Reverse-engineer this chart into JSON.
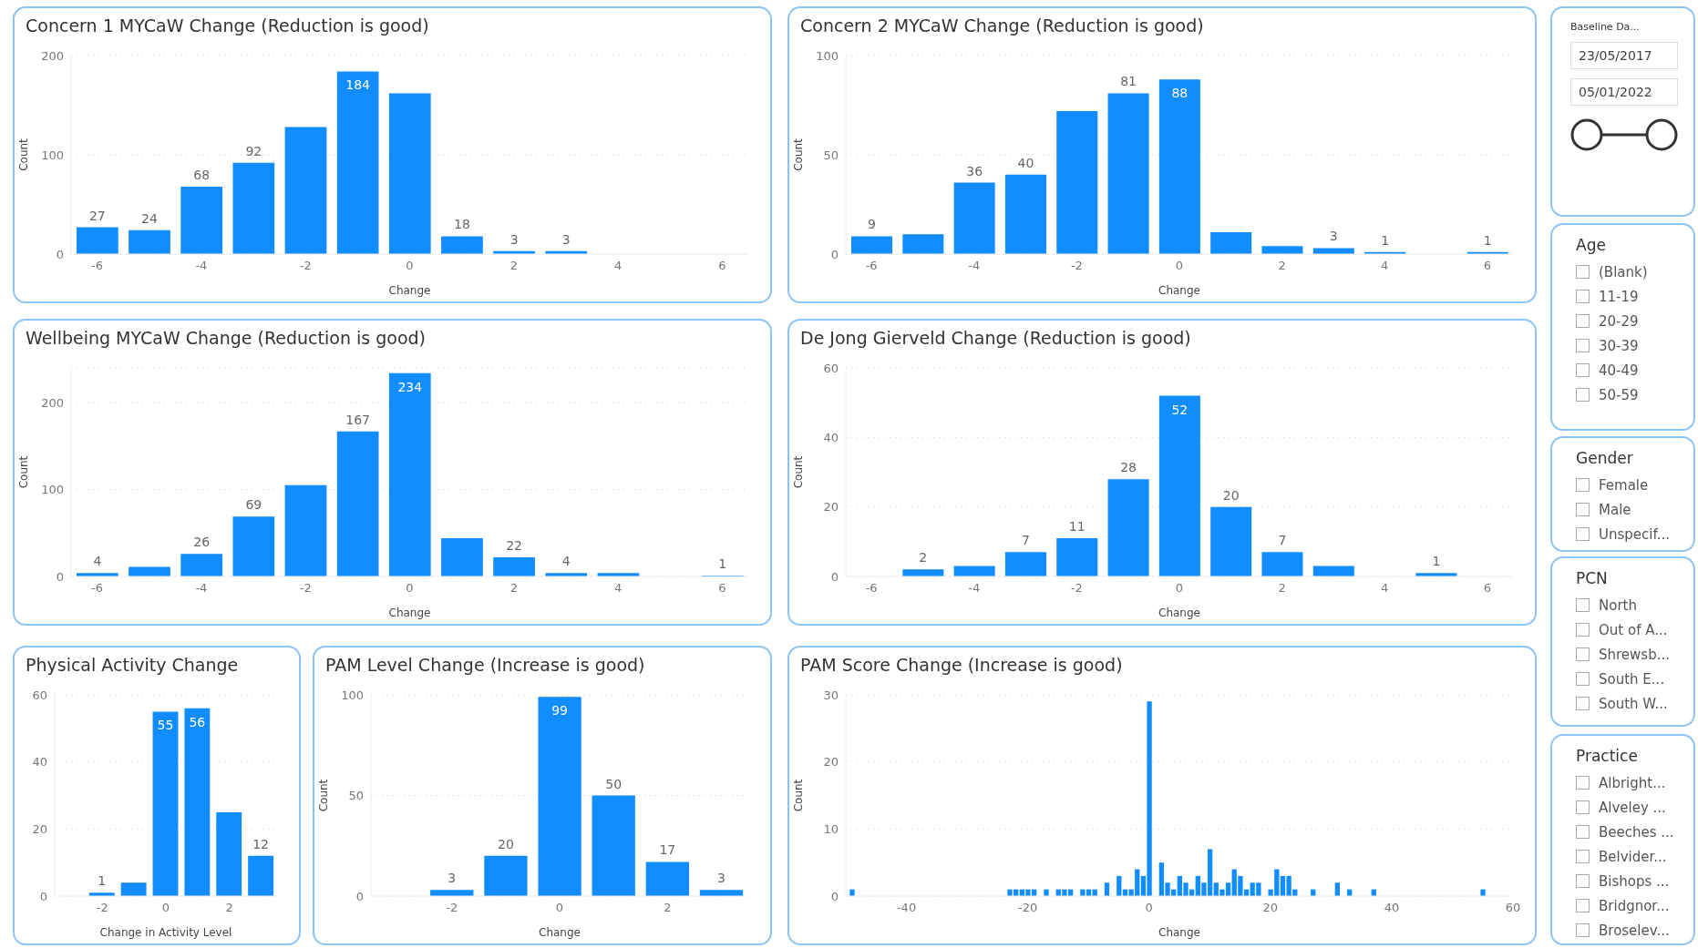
{
  "chart_data": [
    {
      "type": "bar",
      "title": "Concern 1 MYCaW Change (Reduction is good)",
      "xlabel": "Change",
      "ylabel": "Count",
      "x": [
        -6,
        -5,
        -4,
        -3,
        -2,
        -1,
        0,
        1,
        2,
        3
      ],
      "values": [
        27,
        24,
        68,
        92,
        128,
        184,
        162,
        18,
        3,
        3
      ],
      "value_labels": [
        "27",
        "24",
        "68",
        "92",
        null,
        "184",
        null,
        "18",
        "3",
        "3"
      ],
      "color": "#118dff",
      "xlim": [
        -6.5,
        6.5
      ],
      "xticks": [
        -6,
        -4,
        -2,
        0,
        2,
        4,
        6
      ],
      "ylim": [
        0,
        200
      ],
      "yticks": [
        0,
        100,
        200
      ],
      "grid": "y"
    },
    {
      "type": "bar",
      "title": "Concern 2 MYCaW Change (Reduction is good)",
      "xlabel": "Change",
      "ylabel": "Count",
      "x": [
        -6,
        -5,
        -4,
        -3,
        -2,
        -1,
        0,
        1,
        2,
        3,
        4,
        6
      ],
      "values": [
        9,
        10,
        36,
        40,
        72,
        81,
        88,
        11,
        4,
        3,
        1,
        1
      ],
      "value_labels": [
        "9",
        null,
        "36",
        "40",
        null,
        "81",
        "88",
        null,
        null,
        "3",
        "1",
        "1"
      ],
      "color": "#118dff",
      "xlim": [
        -6.5,
        6.5
      ],
      "xticks": [
        -6,
        -4,
        -2,
        0,
        2,
        4,
        6
      ],
      "ylim": [
        0,
        100
      ],
      "yticks": [
        0,
        50,
        100
      ],
      "grid": "y"
    },
    {
      "type": "bar",
      "title": "Wellbeing MYCaW Change (Reduction is good)",
      "xlabel": "Change",
      "ylabel": "Count",
      "x": [
        -6,
        -5,
        -4,
        -3,
        -2,
        -1,
        0,
        1,
        2,
        3,
        4,
        6
      ],
      "values": [
        4,
        11,
        26,
        69,
        105,
        167,
        234,
        44,
        22,
        4,
        4,
        1
      ],
      "value_labels": [
        "4",
        null,
        "26",
        "69",
        null,
        "167",
        "234",
        null,
        "22",
        "4",
        null,
        "1"
      ],
      "color": "#118dff",
      "xlim": [
        -6.5,
        6.5
      ],
      "xticks": [
        -6,
        -4,
        -2,
        0,
        2,
        4,
        6
      ],
      "ylim": [
        0,
        240
      ],
      "yticks": [
        0,
        100,
        200
      ],
      "grid": "y"
    },
    {
      "type": "bar",
      "title": "De Jong Gierveld Change (Reduction is good)",
      "xlabel": "Change",
      "ylabel": "Count",
      "x": [
        -5,
        -4,
        -3,
        -2,
        -1,
        0,
        1,
        2,
        3,
        5
      ],
      "values": [
        2,
        3,
        7,
        11,
        28,
        52,
        20,
        7,
        3,
        1
      ],
      "value_labels": [
        "2",
        null,
        "7",
        "11",
        "28",
        "52",
        "20",
        "7",
        null,
        "1"
      ],
      "color": "#118dff",
      "xlim": [
        -6.5,
        6.5
      ],
      "xticks": [
        -6,
        -4,
        -2,
        0,
        2,
        4,
        6
      ],
      "ylim": [
        0,
        60
      ],
      "yticks": [
        0,
        20,
        40,
        60
      ],
      "grid": "y"
    },
    {
      "type": "bar",
      "title": "Physical Activity Change",
      "xlabel": "Change in Activity Level",
      "x": [
        -2,
        -1,
        0,
        1,
        2,
        3
      ],
      "values": [
        1,
        4,
        55,
        56,
        25,
        12
      ],
      "value_labels": [
        "1",
        null,
        "55",
        "56",
        null,
        "12"
      ],
      "color": "#118dff",
      "xlim": [
        -3.5,
        3.5
      ],
      "xticks": [
        -2,
        0,
        2
      ],
      "ylim": [
        0,
        60
      ],
      "yticks": [
        0,
        20,
        40,
        60
      ],
      "grid": "y"
    },
    {
      "type": "bar",
      "title": "PAM Level Change (Increase is good)",
      "xlabel": "Change",
      "ylabel": "Count",
      "x": [
        -2,
        -1,
        0,
        1,
        2,
        3
      ],
      "values": [
        3,
        20,
        99,
        50,
        17,
        3
      ],
      "value_labels": [
        "3",
        "20",
        "99",
        "50",
        "17",
        "3"
      ],
      "color": "#118dff",
      "xlim": [
        -3.5,
        3.5
      ],
      "xticks": [
        -2,
        0,
        2
      ],
      "ylim": [
        0,
        100
      ],
      "yticks": [
        0,
        50,
        100
      ],
      "grid": "y"
    },
    {
      "type": "bar",
      "title": "PAM Score Change (Increase is good)",
      "xlabel": "Change",
      "ylabel": "Count",
      "x": [
        -49,
        -23,
        -22,
        -21,
        -20,
        -19,
        -17,
        -15,
        -14,
        -13,
        -11,
        -10,
        -9,
        -7,
        -5,
        -4,
        -3,
        -2,
        -1,
        0,
        2,
        3,
        4,
        5,
        6,
        7,
        8,
        9,
        10,
        11,
        12,
        13,
        14,
        15,
        16,
        17,
        18,
        20,
        21,
        22,
        23,
        24,
        27,
        31,
        33,
        37,
        55
      ],
      "values": [
        1,
        1,
        1,
        1,
        1,
        1,
        1,
        1,
        1,
        1,
        1,
        1,
        1,
        2,
        3,
        1,
        1,
        4,
        3,
        29,
        5,
        2,
        1,
        3,
        2,
        1,
        3,
        2,
        7,
        2,
        1,
        2,
        4,
        3,
        1,
        2,
        2,
        1,
        4,
        3,
        3,
        1,
        1,
        2,
        1,
        1,
        1
      ],
      "color": "#118dff",
      "xlim": [
        -50,
        60
      ],
      "xticks": [
        -40,
        -20,
        0,
        20,
        40,
        60
      ],
      "ylim": [
        0,
        30
      ],
      "yticks": [
        0,
        10,
        20,
        30
      ],
      "grid": "y"
    },
    {
      "type": "other",
      "title": "Baseline Da...",
      "annotations": [
        "23/05/2017",
        "05/01/2022"
      ]
    },
    {
      "type": "other",
      "title": "Age",
      "annotations": [
        "(Blank)",
        "11-19",
        "20-29",
        "30-39",
        "40-49",
        "50-59"
      ]
    },
    {
      "type": "other",
      "title": "Gender",
      "annotations": [
        "Female",
        "Male",
        "Unspecif..."
      ]
    },
    {
      "type": "other",
      "title": "PCN",
      "annotations": [
        "North",
        "Out of A...",
        "Shrewsb...",
        "South E...",
        "South W..."
      ]
    },
    {
      "type": "other",
      "title": "Practice",
      "annotations": [
        "Albright...",
        "Alveley ...",
        "Beeches ...",
        "Belvider...",
        "Bishops ...",
        "Bridgnor...",
        "Broselev..."
      ]
    }
  ]
}
